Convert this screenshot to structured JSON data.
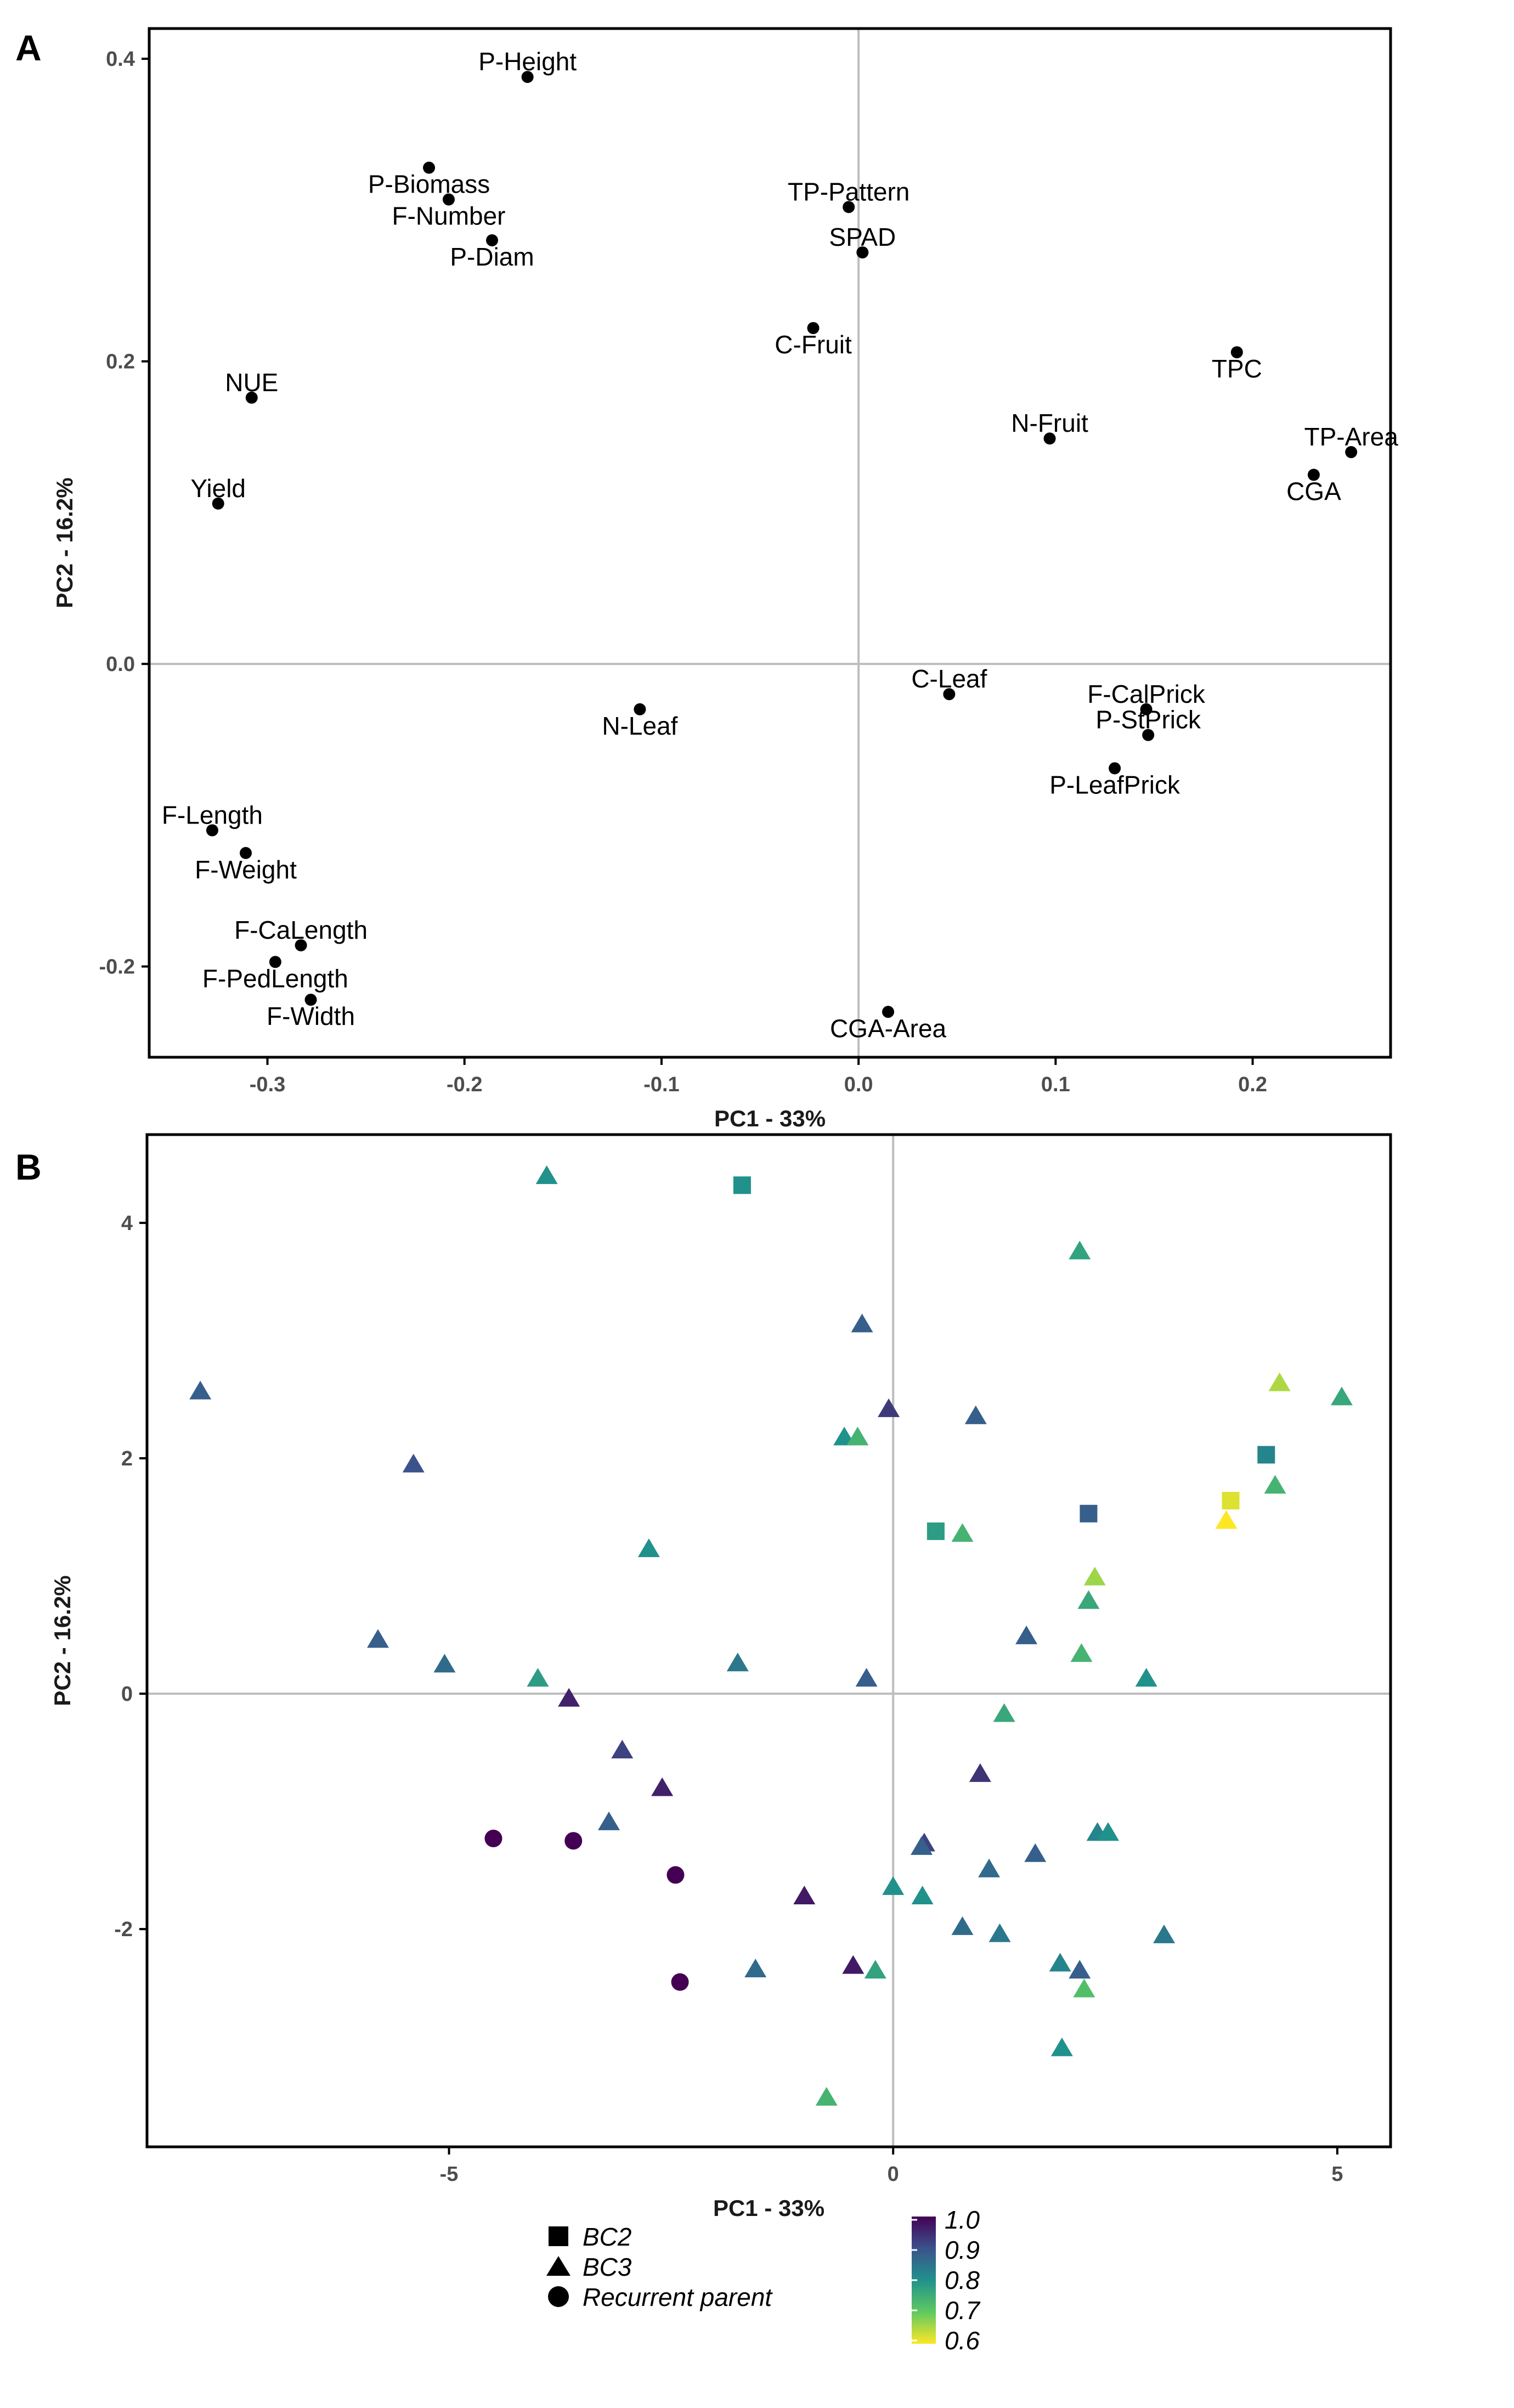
{
  "chart_data": [
    {
      "panel": "A",
      "type": "scatter",
      "xlabel": "PC1 - 33%",
      "ylabel": "PC2 - 16.2%",
      "xlim": [
        -0.36,
        0.27
      ],
      "ylim": [
        -0.26,
        0.42
      ],
      "xticks": [
        -0.3,
        -0.2,
        -0.1,
        0.0,
        0.1,
        0.2
      ],
      "yticks": [
        -0.2,
        0.0,
        0.2,
        0.4
      ],
      "xtick_labels": [
        "-0.3",
        "-0.2",
        "-0.1",
        "0.0",
        "0.1",
        "0.2"
      ],
      "ytick_labels": [
        "-0.2",
        "0.0",
        "0.2",
        "0.4"
      ],
      "points": [
        {
          "label": "P-Height",
          "x": -0.168,
          "y": 0.388,
          "anchor": "top"
        },
        {
          "label": "P-Biomass",
          "x": -0.218,
          "y": 0.328,
          "anchor": "bottom"
        },
        {
          "label": "F-Number",
          "x": -0.208,
          "y": 0.307,
          "anchor": "bottom"
        },
        {
          "label": "P-Diam",
          "x": -0.186,
          "y": 0.28,
          "anchor": "bottom"
        },
        {
          "label": "TP-Pattern",
          "x": -0.005,
          "y": 0.302,
          "anchor": "top"
        },
        {
          "label": "SPAD",
          "x": 0.002,
          "y": 0.272,
          "anchor": "top"
        },
        {
          "label": "C-Fruit",
          "x": -0.023,
          "y": 0.222,
          "anchor": "bottom"
        },
        {
          "label": "TPC",
          "x": 0.192,
          "y": 0.206,
          "anchor": "bottom"
        },
        {
          "label": "NUE",
          "x": -0.308,
          "y": 0.176,
          "anchor": "top"
        },
        {
          "label": "N-Fruit",
          "x": 0.097,
          "y": 0.149,
          "anchor": "top"
        },
        {
          "label": "TP-Area",
          "x": 0.25,
          "y": 0.14,
          "anchor": "top"
        },
        {
          "label": "CGA",
          "x": 0.231,
          "y": 0.125,
          "anchor": "bottom"
        },
        {
          "label": "Yield",
          "x": -0.325,
          "y": 0.106,
          "anchor": "top"
        },
        {
          "label": "C-Leaf",
          "x": 0.046,
          "y": -0.02,
          "anchor": "top"
        },
        {
          "label": "F-CalPrick",
          "x": 0.146,
          "y": -0.03,
          "anchor": "top"
        },
        {
          "label": "N-Leaf",
          "x": -0.111,
          "y": -0.03,
          "anchor": "bottom"
        },
        {
          "label": "P-StPrick",
          "x": 0.147,
          "y": -0.047,
          "anchor": "top"
        },
        {
          "label": "P-LeafPrick",
          "x": 0.13,
          "y": -0.069,
          "anchor": "bottom"
        },
        {
          "label": "F-Length",
          "x": -0.328,
          "y": -0.11,
          "anchor": "top"
        },
        {
          "label": "F-Weight",
          "x": -0.311,
          "y": -0.125,
          "anchor": "bottom"
        },
        {
          "label": "F-CaLength",
          "x": -0.283,
          "y": -0.186,
          "anchor": "top"
        },
        {
          "label": "F-PedLength",
          "x": -0.296,
          "y": -0.197,
          "anchor": "bottom"
        },
        {
          "label": "F-Width",
          "x": -0.278,
          "y": -0.222,
          "anchor": "bottom"
        },
        {
          "label": "CGA-Area",
          "x": 0.015,
          "y": -0.23,
          "anchor": "bottom"
        }
      ]
    },
    {
      "panel": "B",
      "type": "scatter",
      "xlabel": "PC1 - 33%",
      "ylabel": "PC2 - 16.2%",
      "xlim": [
        -8.4,
        5.6
      ],
      "ylim": [
        -3.85,
        4.75
      ],
      "xticks": [
        -5,
        0,
        5
      ],
      "yticks": [
        -2,
        0,
        2,
        4
      ],
      "xtick_labels": [
        "-5",
        "0",
        "5"
      ],
      "ytick_labels": [
        "-2",
        "0",
        "2",
        "4"
      ],
      "color_scale": {
        "min": 0.6,
        "max": 1.0,
        "tick_labels": [
          "1.0",
          "0.9",
          "0.8",
          "0.7",
          "0.6"
        ]
      },
      "legend": {
        "BC2": "BC2",
        "BC3": "BC3",
        "Recurrent parent": "Recurrent parent"
      },
      "points": [
        {
          "x": -3.9,
          "y": 4.4,
          "group": "BC3",
          "value": 0.8
        },
        {
          "x": -1.7,
          "y": 4.32,
          "group": "BC2",
          "value": 0.8
        },
        {
          "x": 2.1,
          "y": 3.76,
          "group": "BC3",
          "value": 0.77
        },
        {
          "x": -0.35,
          "y": 3.14,
          "group": "BC3",
          "value": 0.88
        },
        {
          "x": 4.35,
          "y": 2.64,
          "group": "BC3",
          "value": 0.65
        },
        {
          "x": -7.8,
          "y": 2.57,
          "group": "BC3",
          "value": 0.88
        },
        {
          "x": 5.05,
          "y": 2.52,
          "group": "BC3",
          "value": 0.76
        },
        {
          "x": -0.05,
          "y": 2.42,
          "group": "BC3",
          "value": 0.93
        },
        {
          "x": 0.93,
          "y": 2.36,
          "group": "BC3",
          "value": 0.88
        },
        {
          "x": -0.55,
          "y": 2.18,
          "group": "BC3",
          "value": 0.8
        },
        {
          "x": -0.4,
          "y": 2.18,
          "group": "BC3",
          "value": 0.74
        },
        {
          "x": 4.2,
          "y": 2.03,
          "group": "BC2",
          "value": 0.82
        },
        {
          "x": -5.4,
          "y": 1.95,
          "group": "BC3",
          "value": 0.9
        },
        {
          "x": 4.3,
          "y": 1.77,
          "group": "BC3",
          "value": 0.74
        },
        {
          "x": 3.8,
          "y": 1.64,
          "group": "BC2",
          "value": 0.62
        },
        {
          "x": 2.2,
          "y": 1.53,
          "group": "BC2",
          "value": 0.88
        },
        {
          "x": 3.75,
          "y": 1.47,
          "group": "BC3",
          "value": 0.6
        },
        {
          "x": 0.48,
          "y": 1.38,
          "group": "BC2",
          "value": 0.78
        },
        {
          "x": 0.78,
          "y": 1.36,
          "group": "BC3",
          "value": 0.74
        },
        {
          "x": -2.75,
          "y": 1.23,
          "group": "BC3",
          "value": 0.8
        },
        {
          "x": 2.27,
          "y": 0.99,
          "group": "BC3",
          "value": 0.66
        },
        {
          "x": 2.2,
          "y": 0.79,
          "group": "BC3",
          "value": 0.76
        },
        {
          "x": 1.5,
          "y": 0.49,
          "group": "BC3",
          "value": 0.88
        },
        {
          "x": -5.8,
          "y": 0.46,
          "group": "BC3",
          "value": 0.88
        },
        {
          "x": 2.12,
          "y": 0.34,
          "group": "BC3",
          "value": 0.74
        },
        {
          "x": -5.05,
          "y": 0.25,
          "group": "BC3",
          "value": 0.86
        },
        {
          "x": -1.75,
          "y": 0.26,
          "group": "BC3",
          "value": 0.84
        },
        {
          "x": 2.85,
          "y": 0.13,
          "group": "BC3",
          "value": 0.8
        },
        {
          "x": -4.0,
          "y": 0.13,
          "group": "BC3",
          "value": 0.78
        },
        {
          "x": -0.3,
          "y": 0.13,
          "group": "BC3",
          "value": 0.88
        },
        {
          "x": -3.65,
          "y": -0.04,
          "group": "BC3",
          "value": 0.96
        },
        {
          "x": 1.25,
          "y": -0.17,
          "group": "BC3",
          "value": 0.76
        },
        {
          "x": -3.05,
          "y": -0.48,
          "group": "BC3",
          "value": 0.92
        },
        {
          "x": 0.98,
          "y": -0.68,
          "group": "BC3",
          "value": 0.94
        },
        {
          "x": -2.6,
          "y": -0.8,
          "group": "BC3",
          "value": 0.96
        },
        {
          "x": -3.2,
          "y": -1.09,
          "group": "BC3",
          "value": 0.88
        },
        {
          "x": 2.3,
          "y": -1.18,
          "group": "BC3",
          "value": 0.82
        },
        {
          "x": 2.42,
          "y": -1.18,
          "group": "BC3",
          "value": 0.8
        },
        {
          "x": -4.5,
          "y": -1.23,
          "group": "Recurrent parent",
          "value": 1.0
        },
        {
          "x": -3.6,
          "y": -1.25,
          "group": "Recurrent parent",
          "value": 1.0
        },
        {
          "x": 0.35,
          "y": -1.27,
          "group": "BC3",
          "value": 0.92
        },
        {
          "x": 0.32,
          "y": -1.3,
          "group": "BC3",
          "value": 0.88
        },
        {
          "x": 1.6,
          "y": -1.36,
          "group": "BC3",
          "value": 0.88
        },
        {
          "x": 1.08,
          "y": -1.49,
          "group": "BC3",
          "value": 0.86
        },
        {
          "x": -2.45,
          "y": -1.54,
          "group": "Recurrent parent",
          "value": 1.0
        },
        {
          "x": 0.0,
          "y": -1.64,
          "group": "BC3",
          "value": 0.8
        },
        {
          "x": 0.33,
          "y": -1.72,
          "group": "BC3",
          "value": 0.8
        },
        {
          "x": -1.0,
          "y": -1.72,
          "group": "BC3",
          "value": 0.97
        },
        {
          "x": 0.78,
          "y": -1.98,
          "group": "BC3",
          "value": 0.86
        },
        {
          "x": 1.2,
          "y": -2.04,
          "group": "BC3",
          "value": 0.84
        },
        {
          "x": 3.05,
          "y": -2.05,
          "group": "BC3",
          "value": 0.84
        },
        {
          "x": 1.88,
          "y": -2.29,
          "group": "BC3",
          "value": 0.82
        },
        {
          "x": -0.45,
          "y": -2.31,
          "group": "BC3",
          "value": 0.97
        },
        {
          "x": -1.55,
          "y": -2.34,
          "group": "BC3",
          "value": 0.86
        },
        {
          "x": -0.2,
          "y": -2.35,
          "group": "BC3",
          "value": 0.77
        },
        {
          "x": 2.1,
          "y": -2.35,
          "group": "BC3",
          "value": 0.88
        },
        {
          "x": -2.4,
          "y": -2.45,
          "group": "Recurrent parent",
          "value": 1.0
        },
        {
          "x": 2.15,
          "y": -2.51,
          "group": "BC3",
          "value": 0.72
        },
        {
          "x": 1.9,
          "y": -3.01,
          "group": "BC3",
          "value": 0.8
        },
        {
          "x": -0.75,
          "y": -3.43,
          "group": "BC3",
          "value": 0.74
        }
      ]
    }
  ],
  "panel_letters": {
    "a": "A",
    "b": "B"
  },
  "legend_labels": {
    "bc2": "BC2",
    "bc3": "BC3",
    "rp": "Recurrent parent"
  },
  "colorbar_labels": [
    "1.0",
    "0.9",
    "0.8",
    "0.7",
    "0.6"
  ]
}
